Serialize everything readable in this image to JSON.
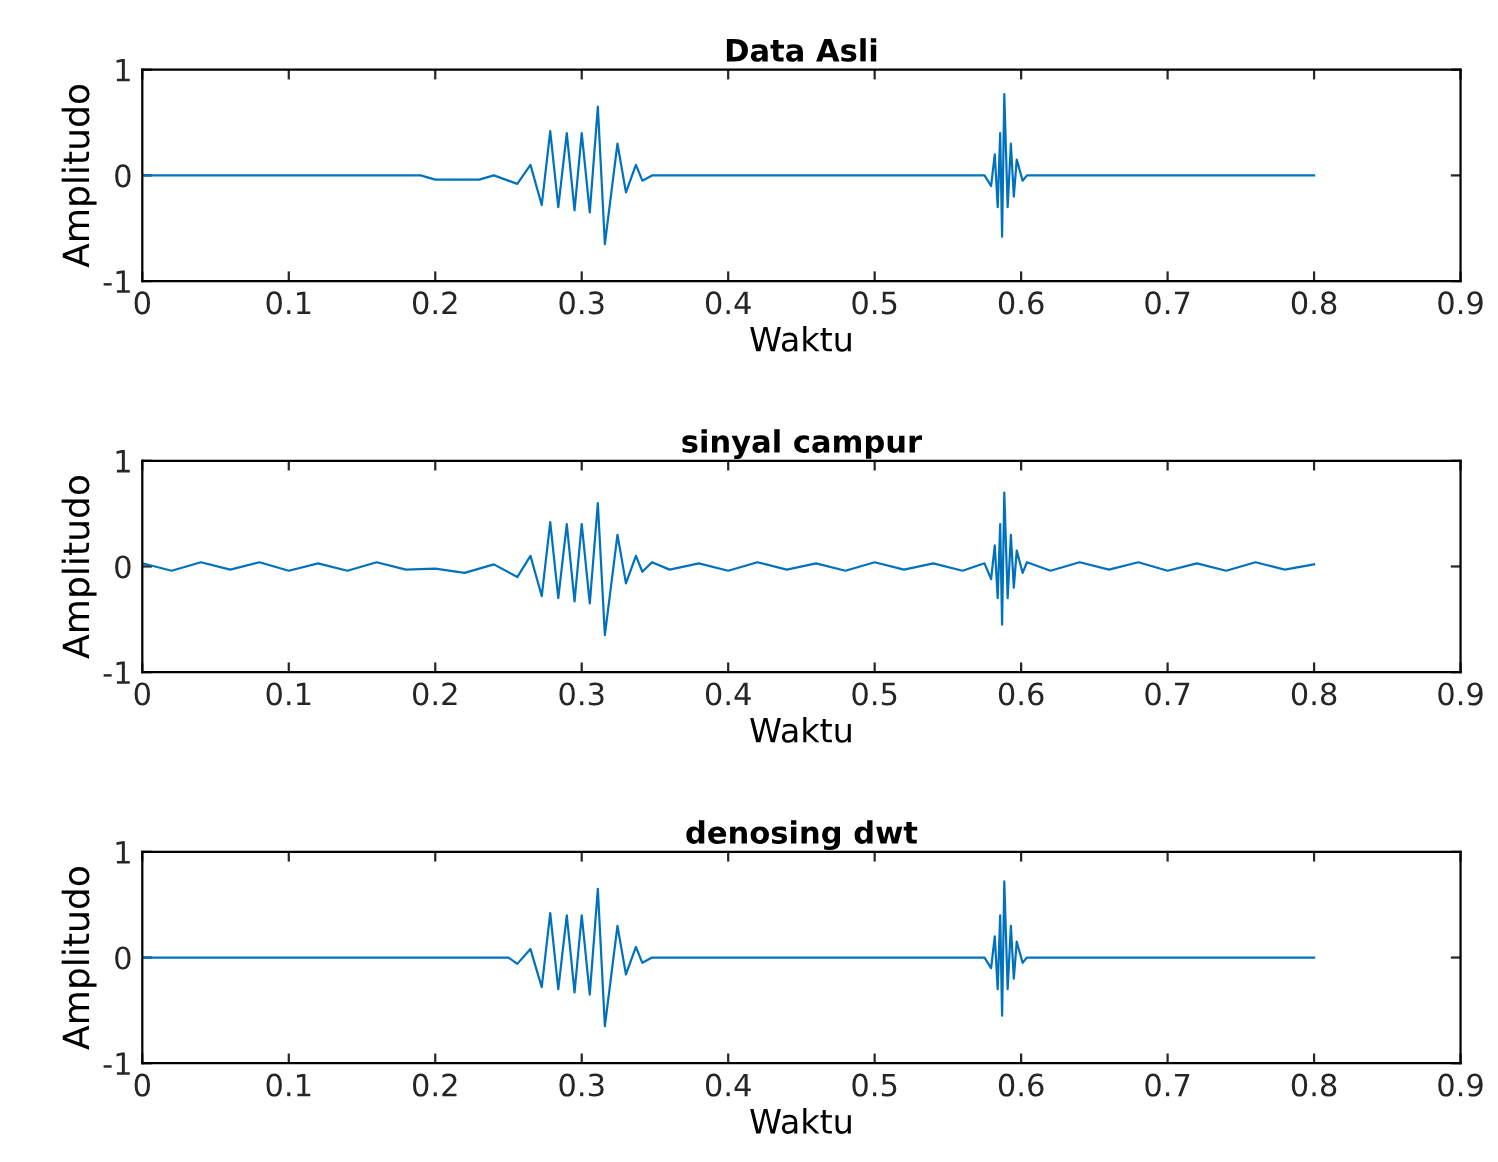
{
  "chart_data": [
    {
      "type": "line",
      "title": "Data Asli",
      "xlabel": "Waktu",
      "ylabel": "Amplitudo",
      "xlim": [
        0,
        0.9
      ],
      "ylim": [
        -1,
        1
      ],
      "xticks": [
        0,
        0.1,
        0.2,
        0.3,
        0.4,
        0.5,
        0.6,
        0.7,
        0.8,
        0.9
      ],
      "yticks": [
        -1,
        0,
        1
      ],
      "grid": false,
      "legend": false,
      "marker": "none",
      "line_style": "solid",
      "series": [
        {
          "color": "#0072bd",
          "x": [
            0,
            0.19,
            0.2,
            0.23,
            0.24,
            0.256,
            0.265,
            0.2727,
            0.2785,
            0.284,
            0.2898,
            0.2951,
            0.3,
            0.3055,
            0.311,
            0.3158,
            0.3244,
            0.3302,
            0.337,
            0.3414,
            0.348,
            0.36,
            0.575,
            0.5795,
            0.582,
            0.584,
            0.5857,
            0.587,
            0.5885,
            0.5908,
            0.593,
            0.595,
            0.597,
            0.601,
            0.604,
            0.8
          ],
          "values": [
            0,
            0,
            -0.04,
            -0.04,
            0,
            -0.08,
            0.1,
            -0.28,
            0.42,
            -0.3,
            0.4,
            -0.33,
            0.4,
            -0.35,
            0.65,
            -0.65,
            0.3,
            -0.16,
            0.1,
            -0.05,
            0,
            0,
            0,
            -0.1,
            0.2,
            -0.3,
            0.4,
            -0.58,
            0.77,
            -0.3,
            0.3,
            -0.2,
            0.15,
            -0.05,
            0,
            0
          ]
        }
      ]
    },
    {
      "type": "line",
      "title": "sinyal campur",
      "xlabel": "Waktu",
      "ylabel": "Amplitudo",
      "xlim": [
        0,
        0.9
      ],
      "ylim": [
        -1,
        1
      ],
      "xticks": [
        0,
        0.1,
        0.2,
        0.3,
        0.4,
        0.5,
        0.6,
        0.7,
        0.8,
        0.9
      ],
      "yticks": [
        -1,
        0,
        1
      ],
      "grid": false,
      "legend": false,
      "marker": "none",
      "line_style": "solid",
      "series": [
        {
          "color": "#0072bd",
          "x": [
            0,
            0.02,
            0.04,
            0.06,
            0.08,
            0.1,
            0.12,
            0.14,
            0.16,
            0.18,
            0.2,
            0.22,
            0.24,
            0.256,
            0.265,
            0.2727,
            0.2785,
            0.284,
            0.2898,
            0.2951,
            0.3,
            0.3055,
            0.311,
            0.3158,
            0.3244,
            0.3302,
            0.337,
            0.3414,
            0.348,
            0.36,
            0.38,
            0.4,
            0.42,
            0.44,
            0.46,
            0.48,
            0.5,
            0.52,
            0.54,
            0.56,
            0.575,
            0.5795,
            0.582,
            0.584,
            0.5857,
            0.587,
            0.5885,
            0.5908,
            0.593,
            0.595,
            0.597,
            0.601,
            0.604,
            0.62,
            0.64,
            0.66,
            0.68,
            0.7,
            0.72,
            0.74,
            0.76,
            0.78,
            0.8
          ],
          "values": [
            0.03,
            -0.04,
            0.04,
            -0.03,
            0.04,
            -0.04,
            0.03,
            -0.04,
            0.04,
            -0.03,
            -0.02,
            -0.06,
            0.02,
            -0.1,
            0.1,
            -0.28,
            0.42,
            -0.3,
            0.4,
            -0.33,
            0.4,
            -0.35,
            0.6,
            -0.65,
            0.3,
            -0.16,
            0.1,
            -0.05,
            0.04,
            -0.03,
            0.03,
            -0.04,
            0.04,
            -0.03,
            0.03,
            -0.04,
            0.04,
            -0.03,
            0.03,
            -0.04,
            0.03,
            -0.12,
            0.2,
            -0.3,
            0.4,
            -0.55,
            0.7,
            -0.3,
            0.3,
            -0.2,
            0.15,
            -0.06,
            0.04,
            -0.04,
            0.04,
            -0.03,
            0.04,
            -0.04,
            0.03,
            -0.04,
            0.04,
            -0.03,
            0.02
          ]
        }
      ]
    },
    {
      "type": "line",
      "title": "denosing dwt",
      "xlabel": "Waktu",
      "ylabel": "Amplitudo",
      "xlim": [
        0,
        0.9
      ],
      "ylim": [
        -1,
        1
      ],
      "xticks": [
        0,
        0.1,
        0.2,
        0.3,
        0.4,
        0.5,
        0.6,
        0.7,
        0.8,
        0.9
      ],
      "yticks": [
        -1,
        0,
        1
      ],
      "grid": false,
      "legend": false,
      "marker": "none",
      "line_style": "solid",
      "series": [
        {
          "color": "#0072bd",
          "x": [
            0,
            0.25,
            0.256,
            0.265,
            0.2727,
            0.2785,
            0.284,
            0.2898,
            0.2951,
            0.3,
            0.3055,
            0.311,
            0.3158,
            0.3244,
            0.3302,
            0.337,
            0.3414,
            0.348,
            0.36,
            0.575,
            0.5795,
            0.582,
            0.584,
            0.5857,
            0.587,
            0.5885,
            0.5908,
            0.593,
            0.595,
            0.597,
            0.601,
            0.604,
            0.8
          ],
          "values": [
            0,
            0,
            -0.06,
            0.08,
            -0.28,
            0.42,
            -0.3,
            0.4,
            -0.33,
            0.4,
            -0.35,
            0.65,
            -0.65,
            0.3,
            -0.16,
            0.1,
            -0.05,
            0,
            0,
            0,
            -0.1,
            0.2,
            -0.3,
            0.4,
            -0.55,
            0.72,
            -0.3,
            0.3,
            -0.2,
            0.15,
            -0.05,
            0,
            0
          ]
        }
      ]
    }
  ]
}
